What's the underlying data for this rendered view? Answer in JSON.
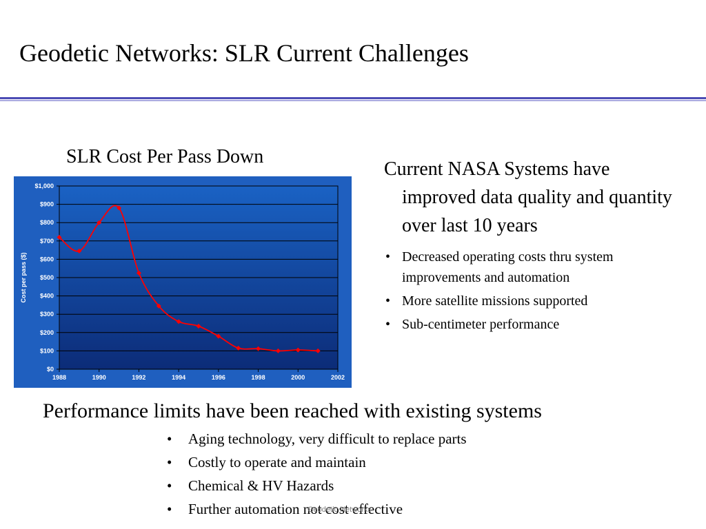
{
  "slide": {
    "title": "Geodetic Networks: SLR Current Challenges",
    "footer": "Geodetic Networks"
  },
  "chart_section": {
    "heading": "SLR Cost Per Pass Down"
  },
  "chart_data": {
    "type": "line",
    "title": "",
    "xlabel": "",
    "ylabel": "Cost per pass ($)",
    "xlim": [
      1988,
      2002
    ],
    "ylim": [
      0,
      1000
    ],
    "x_ticks": [
      "1988",
      "1990",
      "1992",
      "1994",
      "1996",
      "1998",
      "2000",
      "2002"
    ],
    "x_tick_values": [
      1988,
      1990,
      1992,
      1994,
      1996,
      1998,
      2000,
      2002
    ],
    "y_ticks": [
      "$0",
      "$100",
      "$200",
      "$300",
      "$400",
      "$500",
      "$600",
      "$700",
      "$800",
      "$900",
      "$1,000"
    ],
    "y_tick_values": [
      0,
      100,
      200,
      300,
      400,
      500,
      600,
      700,
      800,
      900,
      1000
    ],
    "grid": true,
    "background_color": "#1f5fbf",
    "series": [
      {
        "color": "#ff0000",
        "x": [
          1988,
          1989,
          1990,
          1991,
          1992,
          1993,
          1994,
          1995,
          1996,
          1997,
          1998,
          1999,
          2000,
          2001
        ],
        "values": [
          720,
          645,
          800,
          880,
          525,
          345,
          260,
          235,
          180,
          115,
          112,
          100,
          105,
          100
        ]
      }
    ]
  },
  "right_panel": {
    "lead": "Current NASA Systems have improved data quality and quantity over last 10 years",
    "bullets": [
      "Decreased operating costs thru system improvements and automation",
      "More satellite missions supported",
      "Sub-centimeter performance"
    ]
  },
  "bottom_panel": {
    "heading": "Performance limits have been reached with existing systems",
    "bullets": [
      "Aging technology, very difficult to replace parts",
      "Costly to operate and maintain",
      "Chemical & HV Hazards",
      "Further automation not cost effective"
    ]
  },
  "bullet_glyph": "•"
}
